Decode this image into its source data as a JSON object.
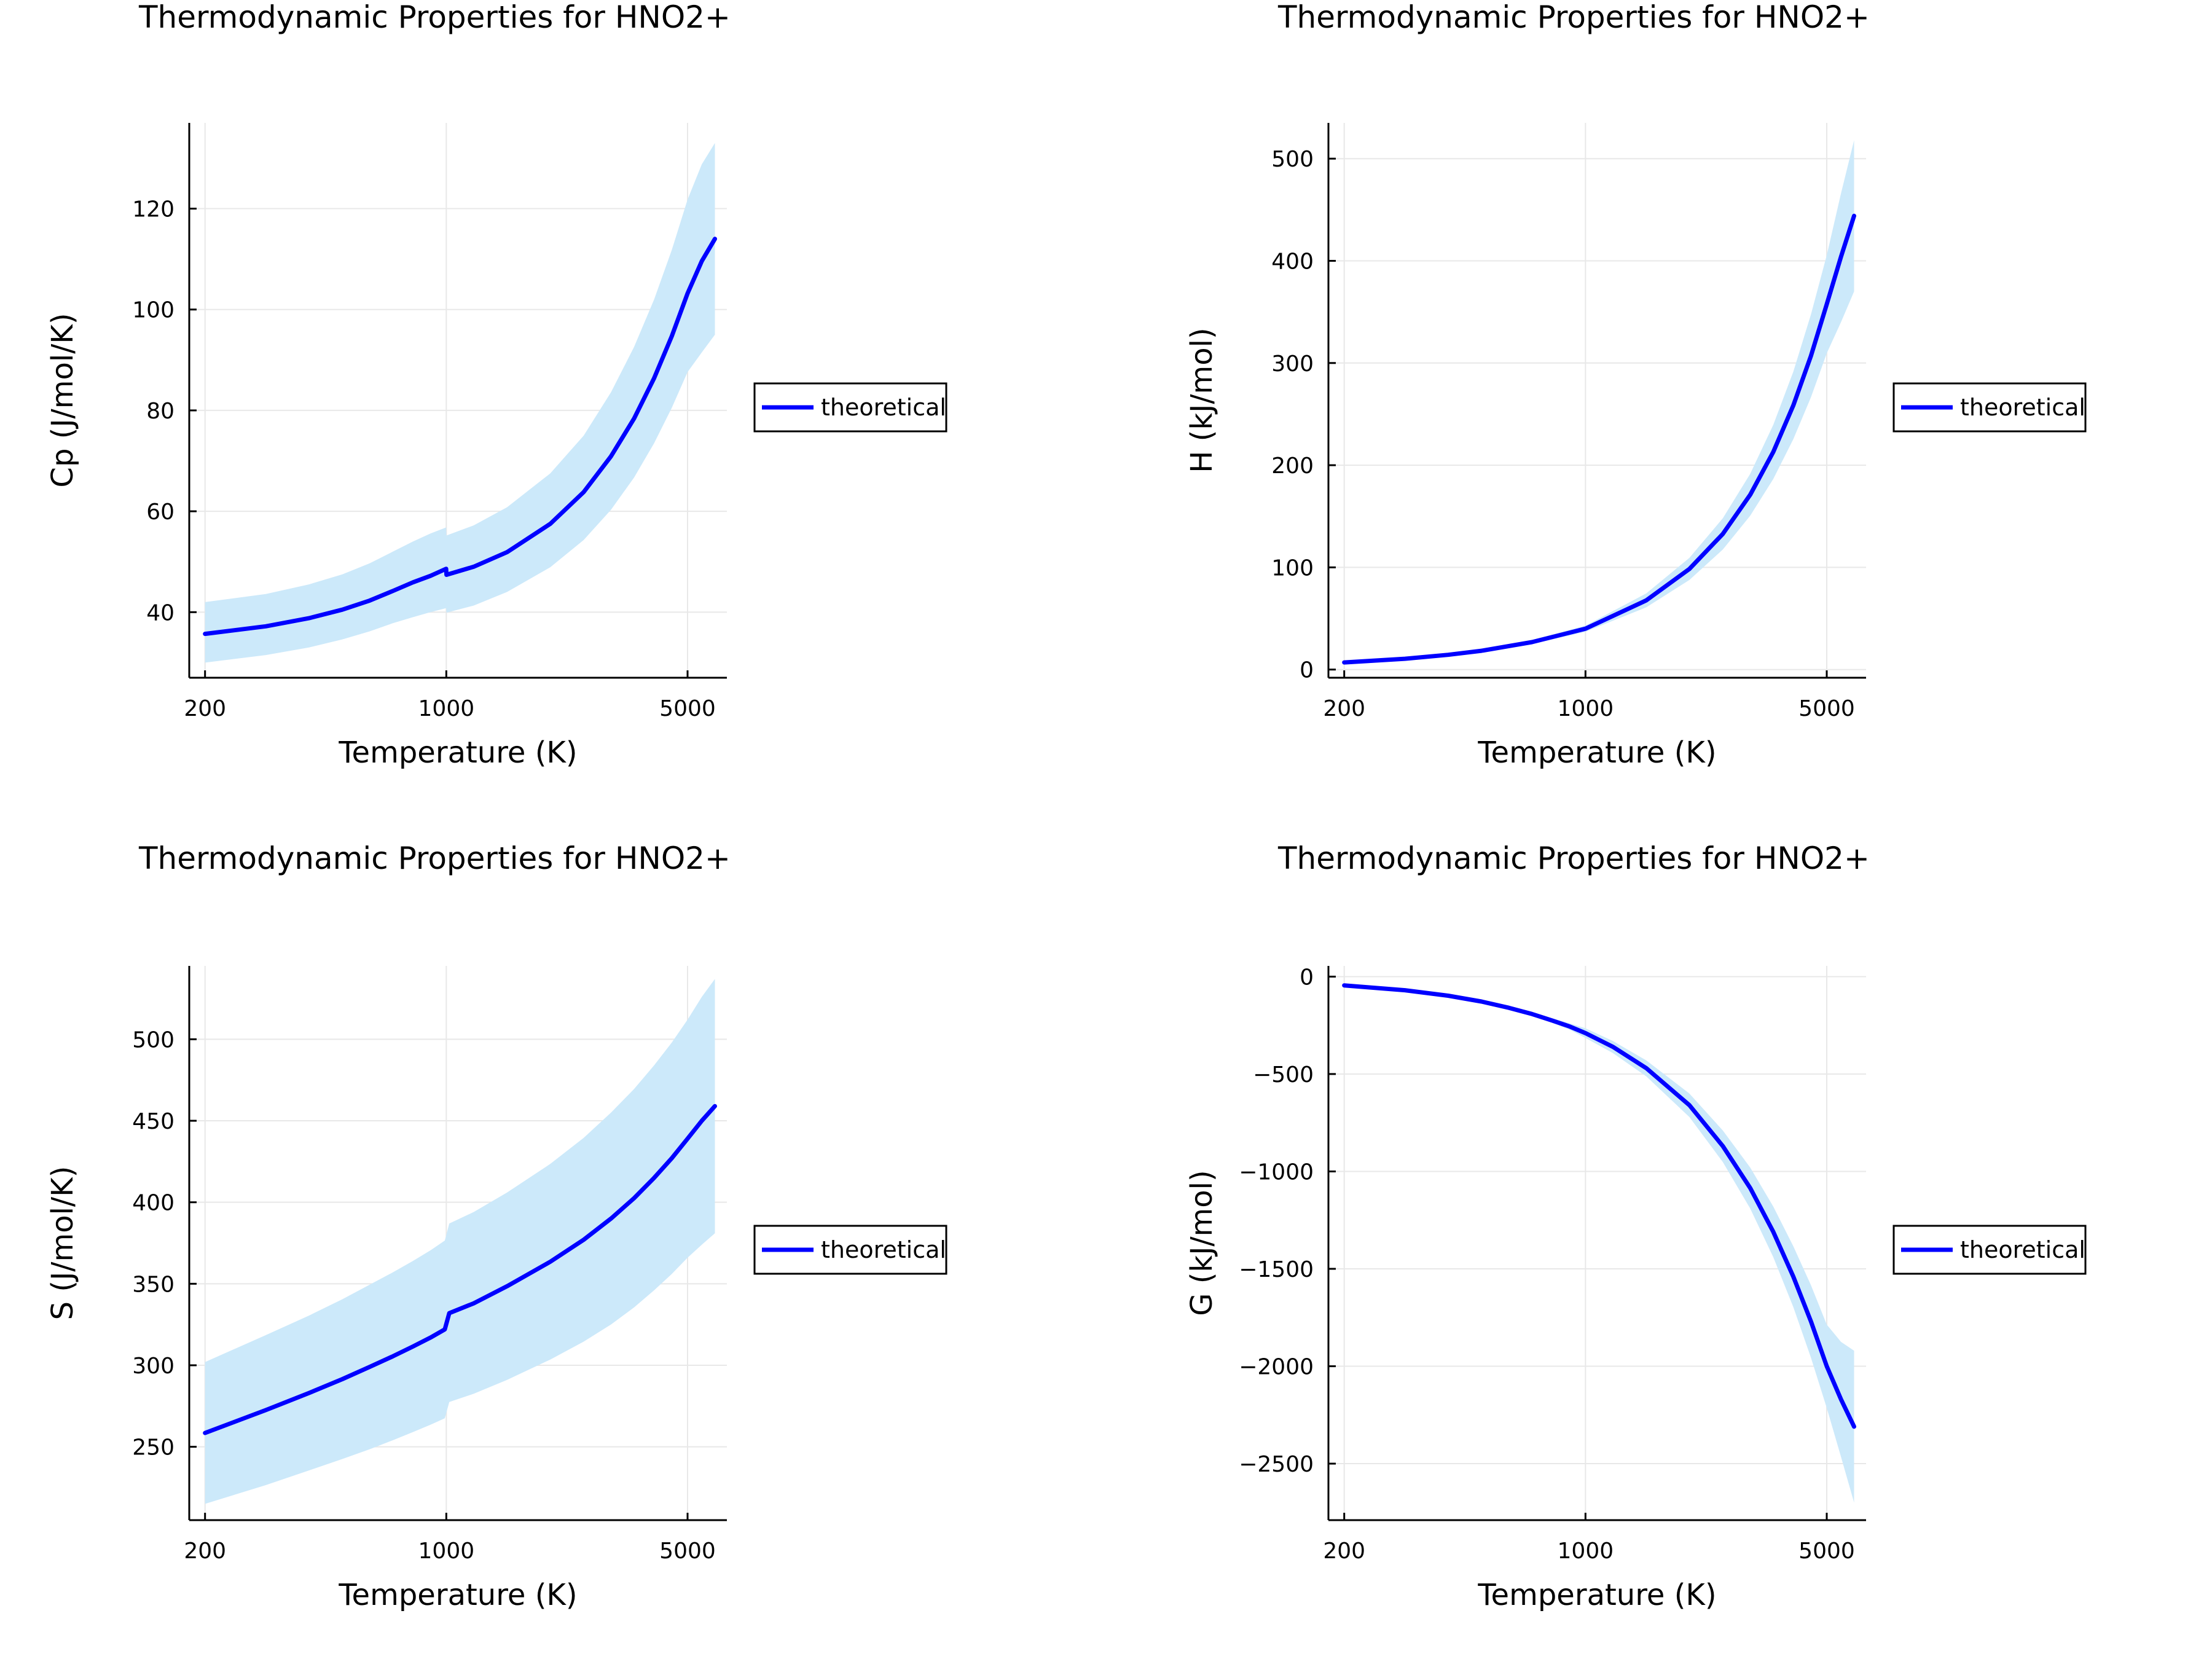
{
  "chart_data": [
    {
      "type": "line",
      "title": "Thermodynamic Properties for HNO2+",
      "xlabel": "Temperature (K)",
      "ylabel": "Cp (J/mol/K)",
      "x_scale": "log",
      "xlim": [
        180,
        6500
      ],
      "ylim": [
        27,
        137
      ],
      "x_ticks": [
        200,
        1000,
        5000
      ],
      "x_tick_labels": [
        "200",
        "1000",
        "5000"
      ],
      "y_ticks": [
        40,
        60,
        80,
        100,
        120
      ],
      "y_tick_labels": [
        "40",
        "60",
        "80",
        "100",
        "120"
      ],
      "grid": true,
      "legend_position": "outer right",
      "series": [
        {
          "name": "theoretical",
          "color": "#0000ff",
          "band_color": "#cce9fa",
          "x": [
            200,
            300,
            400,
            500,
            600,
            700,
            800,
            900,
            999,
            1001,
            1200,
            1500,
            2000,
            2500,
            3000,
            3500,
            4000,
            4500,
            5000,
            5500,
            6000
          ],
          "y": [
            35.7,
            37.2,
            38.8,
            40.5,
            42.3,
            44.2,
            45.9,
            47.2,
            48.6,
            47.4,
            49.0,
            51.9,
            57.5,
            63.8,
            70.9,
            78.4,
            86.4,
            94.7,
            103.2,
            109.6,
            114.0
          ],
          "lower": [
            30.0,
            31.5,
            33.0,
            34.6,
            36.2,
            37.8,
            39.0,
            40.0,
            40.8,
            39.9,
            41.3,
            44.0,
            48.9,
            54.3,
            60.3,
            66.7,
            73.5,
            80.5,
            87.6,
            91.5,
            95.0
          ],
          "upper": [
            42.0,
            43.6,
            45.5,
            47.5,
            49.7,
            52.0,
            54.0,
            55.6,
            56.8,
            55.2,
            57.2,
            60.8,
            67.5,
            75.0,
            83.6,
            92.6,
            102.0,
            111.8,
            121.8,
            128.8,
            133.0
          ]
        }
      ]
    },
    {
      "type": "line",
      "title": "Thermodynamic Properties for HNO2+",
      "xlabel": "Temperature (K)",
      "ylabel": "H (kJ/mol)",
      "x_scale": "log",
      "xlim": [
        180,
        6500
      ],
      "ylim": [
        -8,
        535
      ],
      "x_ticks": [
        200,
        1000,
        5000
      ],
      "x_tick_labels": [
        "200",
        "1000",
        "5000"
      ],
      "y_ticks": [
        0,
        100,
        200,
        300,
        400,
        500
      ],
      "y_tick_labels": [
        "0",
        "100",
        "200",
        "300",
        "400",
        "500"
      ],
      "grid": true,
      "legend_position": "outer right",
      "series": [
        {
          "name": "theoretical",
          "color": "#0000ff",
          "band_color": "#cce9fa",
          "x": [
            200,
            300,
            400,
            500,
            700,
            1000,
            1500,
            2000,
            2500,
            3000,
            3500,
            4000,
            4500,
            5000,
            5500,
            6000
          ],
          "y": [
            7,
            10.6,
            14.4,
            18.4,
            26.9,
            40.0,
            67.7,
            98.5,
            132.8,
            171.0,
            213.0,
            258.5,
            307.0,
            357.5,
            404.0,
            444.0
          ],
          "lower": [
            6.5,
            9.8,
            13.3,
            17.0,
            24.9,
            37.0,
            60.9,
            87.7,
            117.5,
            150.5,
            186.5,
            225.5,
            266.5,
            309.5,
            340.0,
            370.0
          ],
          "upper": [
            7.5,
            11.4,
            15.5,
            19.8,
            28.9,
            43.0,
            74.5,
            109.3,
            148.1,
            191.5,
            239.5,
            291.5,
            347.5,
            405.5,
            466.0,
            518.0
          ]
        }
      ]
    },
    {
      "type": "line",
      "title": "Thermodynamic Properties for HNO2+",
      "xlabel": "Temperature (K)",
      "ylabel": "S (J/mol/K)",
      "x_scale": "log",
      "xlim": [
        180,
        6500
      ],
      "ylim": [
        205,
        545
      ],
      "x_ticks": [
        200,
        1000,
        5000
      ],
      "x_tick_labels": [
        "200",
        "1000",
        "5000"
      ],
      "y_ticks": [
        250,
        300,
        350,
        400,
        450,
        500
      ],
      "y_tick_labels": [
        "250",
        "300",
        "350",
        "400",
        "450",
        "500"
      ],
      "grid": true,
      "legend_position": "outer right",
      "series": [
        {
          "name": "theoretical",
          "color": "#0000ff",
          "band_color": "#cce9fa",
          "x": [
            200,
            300,
            400,
            500,
            600,
            700,
            800,
            900,
            990,
            1020,
            1200,
            1500,
            2000,
            2500,
            3000,
            3500,
            4000,
            4500,
            5000,
            5500,
            6000
          ],
          "y": [
            258.5,
            272.5,
            283.0,
            291.5,
            299.0,
            305.5,
            311.5,
            317.0,
            322.0,
            332.0,
            338.0,
            348.5,
            363.5,
            377.0,
            390.0,
            402.5,
            415.0,
            427.0,
            439.0,
            450.0,
            459.0
          ],
          "lower": [
            215.0,
            226.5,
            235.5,
            242.5,
            248.5,
            254.0,
            259.0,
            263.5,
            267.5,
            277.5,
            282.5,
            291.0,
            303.5,
            314.5,
            325.0,
            335.5,
            346.0,
            356.0,
            366.0,
            374.0,
            381.0
          ],
          "upper": [
            302.0,
            318.5,
            330.5,
            340.5,
            349.5,
            357.0,
            364.0,
            370.5,
            376.5,
            387.0,
            394.0,
            406.0,
            423.5,
            439.5,
            455.0,
            469.5,
            484.0,
            498.0,
            512.0,
            526.0,
            537.0
          ]
        }
      ]
    },
    {
      "type": "line",
      "title": "Thermodynamic Properties for HNO2+",
      "xlabel": "Temperature (K)",
      "ylabel": "G (kJ/mol)",
      "x_scale": "log",
      "xlim": [
        180,
        6500
      ],
      "ylim": [
        -2790,
        55
      ],
      "x_ticks": [
        200,
        1000,
        5000
      ],
      "x_tick_labels": [
        "200",
        "1000",
        "5000"
      ],
      "y_ticks": [
        0,
        -500,
        -1000,
        -1500,
        -2000,
        -2500
      ],
      "y_tick_labels": [
        "0",
        "−500",
        "−1000",
        "−1500",
        "−2000",
        "−2500"
      ],
      "grid": true,
      "legend_position": "outer right",
      "series": [
        {
          "name": "theoretical",
          "color": "#0000ff",
          "band_color": "#cce9fa",
          "x": [
            200,
            300,
            400,
            500,
            600,
            700,
            800,
            900,
            1000,
            1200,
            1500,
            2000,
            2500,
            3000,
            3500,
            4000,
            4500,
            5000,
            5500,
            6000
          ],
          "y": [
            -45,
            -70,
            -98,
            -128,
            -160,
            -192,
            -225,
            -256,
            -290,
            -360,
            -470,
            -660,
            -870,
            -1085,
            -1310,
            -1540,
            -1770,
            -2000,
            -2170,
            -2310
          ],
          "lower": [
            -47,
            -73,
            -102,
            -134,
            -168,
            -202,
            -237,
            -272,
            -315,
            -392,
            -512,
            -721,
            -952,
            -1190,
            -1440,
            -1696,
            -1956,
            -2214,
            -2465,
            -2700
          ],
          "upper": [
            -43,
            -67,
            -94,
            -122,
            -152,
            -182,
            -213,
            -240,
            -265,
            -330,
            -430,
            -600,
            -790,
            -980,
            -1180,
            -1384,
            -1584,
            -1786,
            -1875,
            -1920
          ]
        }
      ]
    }
  ]
}
